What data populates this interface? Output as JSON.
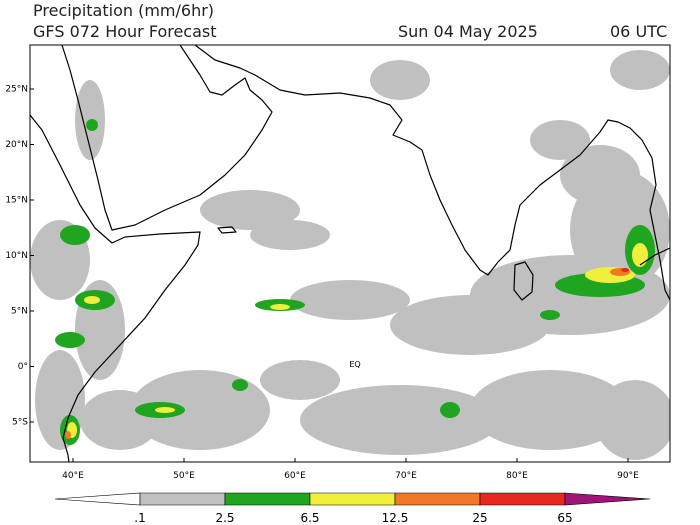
{
  "header": {
    "title": "Precipitation (mm/6hr)",
    "subtitle": "GFS 072 Hour Forecast",
    "date": "Sun 04 May 2025",
    "time": "06 UTC"
  },
  "map": {
    "lat_labels": [
      "25°N",
      "20°N",
      "15°N",
      "10°N",
      "5°N",
      "0°",
      "5°S"
    ],
    "lon_labels": [
      "40°E",
      "50°E",
      "60°E",
      "70°E",
      "80°E",
      "90°E"
    ],
    "equator_label": "EQ"
  },
  "colorbar": {
    "labels": [
      ".1",
      "2.5",
      "6.5",
      "12.5",
      "25",
      "65"
    ],
    "colors": [
      "#ffffff",
      "#c0c0c0",
      "#1fa51f",
      "#f0f03c",
      "#f07828",
      "#e6281e",
      "#a0147a"
    ]
  }
}
